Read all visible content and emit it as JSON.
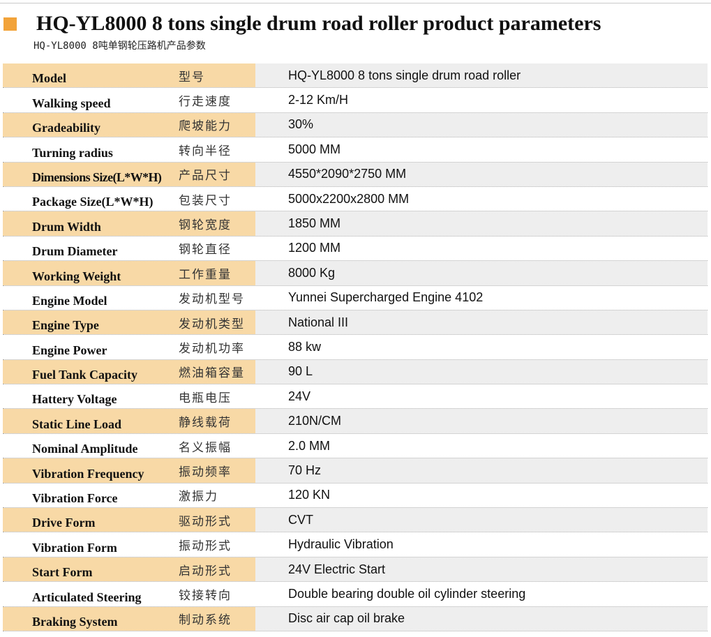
{
  "header": {
    "title": "HQ-YL8000 8 tons single drum road roller product parameters",
    "subtitle": "HQ-YL8000 8吨单钢轮压路机产品参数",
    "accent_color": "#f2a33a"
  },
  "colors": {
    "label_band": "#f8d9a6",
    "value_band": "#eeeeee"
  },
  "rows": [
    {
      "en": "Model",
      "cn": "型号",
      "value": "HQ-YL8000 8 tons single drum road roller"
    },
    {
      "en": "Walking speed",
      "cn": "行走速度",
      "value": "2-12 Km/H"
    },
    {
      "en": "Gradeability",
      "cn": "爬坡能力",
      "value": "30%"
    },
    {
      "en": "Turning radius",
      "cn": "转向半径",
      "value": "5000 MM"
    },
    {
      "en": "Dimensions Size(L*W*H)",
      "cn": "产品尺寸",
      "value": "4550*2090*2750 MM"
    },
    {
      "en": "Package Size(L*W*H)",
      "cn": "包装尺寸",
      "value": "5000x2200x2800 MM"
    },
    {
      "en": "Drum Width",
      "cn": "钢轮宽度",
      "value": "1850 MM"
    },
    {
      "en": "Drum Diameter",
      "cn": "钢轮直径",
      "value": "1200 MM"
    },
    {
      "en": "Working Weight",
      "cn": "工作重量",
      "value": "8000 Kg"
    },
    {
      "en": "Engine Model",
      "cn": "发动机型号",
      "value": "Yunnei Supercharged Engine 4102"
    },
    {
      "en": "Engine Type",
      "cn": "发动机类型",
      "value": "National III"
    },
    {
      "en": "Engine Power",
      "cn": "发动机功率",
      "value": "88 kw"
    },
    {
      "en": "Fuel Tank Capacity",
      "cn": "燃油箱容量",
      "value": "90 L"
    },
    {
      "en": "Hattery Voltage",
      "cn": "电瓶电压",
      "value": "24V"
    },
    {
      "en": "Static Line Load",
      "cn": "静线载荷",
      "value": "210N/CM"
    },
    {
      "en": "Nominal Amplitude",
      "cn": "名义振幅",
      "value": "2.0 MM"
    },
    {
      "en": "Vibration Frequency",
      "cn": "振动频率",
      "value": "70 Hz"
    },
    {
      "en": "Vibration Force",
      "cn": "激振力",
      "value": "120 KN"
    },
    {
      "en": "Drive Form",
      "cn": "驱动形式",
      "value": "CVT"
    },
    {
      "en": "Vibration Form",
      "cn": "振动形式",
      "value": "Hydraulic Vibration"
    },
    {
      "en": "Start Form",
      "cn": "启动形式",
      "value": "24V Electric Start"
    },
    {
      "en": "Articulated Steering",
      "cn": "铰接转向",
      "value": "Double bearing double oil cylinder steering"
    },
    {
      "en": "Braking System",
      "cn": "制动系统",
      "value": "Disc air cap oil brake"
    }
  ]
}
